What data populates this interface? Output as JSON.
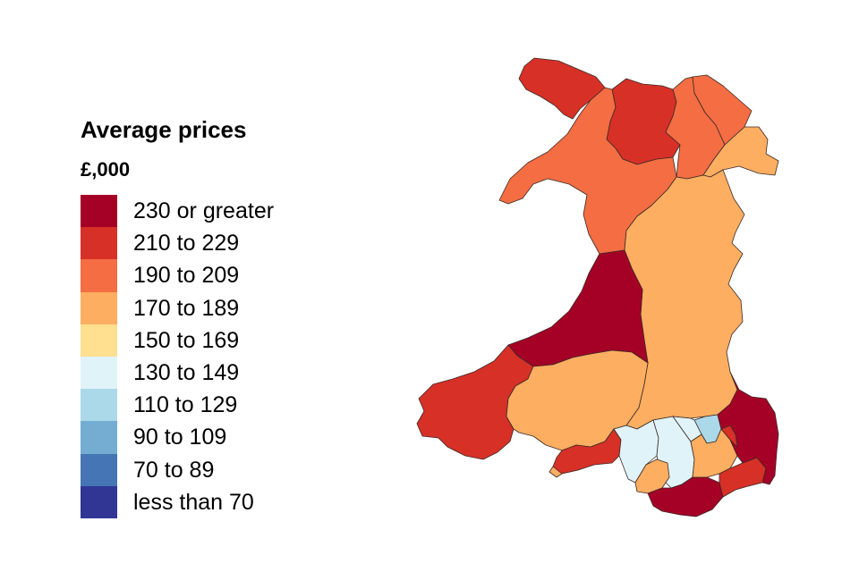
{
  "legend": {
    "title": "Average prices",
    "subtitle": "£,000",
    "bands": [
      {
        "label": "230 or greater",
        "color": "#a50026"
      },
      {
        "label": "210 to 229",
        "color": "#d73027"
      },
      {
        "label": "190 to 209",
        "color": "#f46d43"
      },
      {
        "label": "170 to 189",
        "color": "#fdae61"
      },
      {
        "label": "150 to 169",
        "color": "#fee090"
      },
      {
        "label": "130 to 149",
        "color": "#e0f3f8"
      },
      {
        "label": "110 to 129",
        "color": "#abd9e9"
      },
      {
        "label": "90 to 109",
        "color": "#74add1"
      },
      {
        "label": "70 to 89",
        "color": "#4575b4"
      },
      {
        "label": "less than 70",
        "color": "#313695"
      }
    ]
  },
  "map": {
    "regions": [
      {
        "band": 1
      },
      {
        "band": 1
      },
      {
        "band": 2
      },
      {
        "band": 2
      },
      {
        "band": 3
      },
      {
        "band": 2
      },
      {
        "band": 3
      },
      {
        "band": 0
      },
      {
        "band": 1
      },
      {
        "band": 3
      },
      {
        "band": 1
      },
      {
        "band": 5
      },
      {
        "band": 5
      },
      {
        "band": 6
      },
      {
        "band": 3
      },
      {
        "band": 0
      },
      {
        "band": 3
      },
      {
        "band": 5
      },
      {
        "band": 1
      },
      {
        "band": 0
      },
      {
        "band": 1
      },
      {
        "band": 3
      }
    ]
  }
}
